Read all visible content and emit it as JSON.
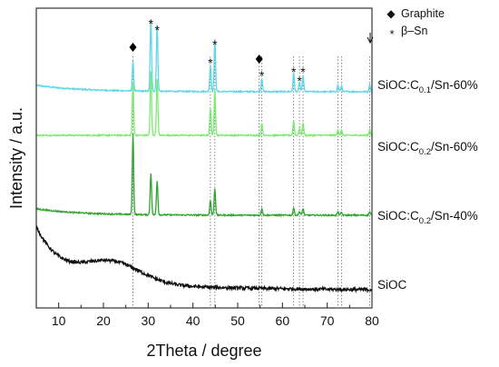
{
  "chart_data": {
    "type": "line",
    "xlabel": "2Theta / degree",
    "ylabel": "Intensity / a.u.",
    "xlim": [
      5,
      80
    ],
    "x_ticks": [
      10,
      20,
      30,
      40,
      50,
      60,
      70,
      80
    ],
    "y_ticks_labeled": false,
    "grid": false,
    "legend": {
      "placement": "top-right",
      "entries": [
        {
          "symbol": "◆",
          "label": "Graphite"
        },
        {
          "symbol": "*",
          "label": "β–Sn"
        }
      ]
    },
    "reference_lines_2theta": [
      26.6,
      43.9,
      44.9,
      54.8,
      55.4,
      62.5,
      63.8,
      64.6,
      72.4,
      73.2,
      79.5
    ],
    "graphite_markers_2theta": [
      26.6,
      54.8
    ],
    "sn_markers_2theta": [
      30.6,
      32.0,
      43.9,
      44.9,
      55.4,
      62.5,
      63.8,
      64.6
    ],
    "series": [
      {
        "name": "SiOC:C0.1/Sn-60%",
        "label_parts": [
          "SiOC:C",
          "0.1",
          "/Sn-60%"
        ],
        "color": "#5ED7E8",
        "baseline": "sloped",
        "peaks": [
          [
            26.6,
            0.6
          ],
          [
            30.6,
            1.45
          ],
          [
            32.0,
            1.35
          ],
          [
            43.9,
            0.55
          ],
          [
            44.9,
            1.05
          ],
          [
            55.4,
            0.28
          ],
          [
            62.5,
            0.38
          ],
          [
            63.8,
            0.2
          ],
          [
            64.6,
            0.32
          ],
          [
            72.4,
            0.14
          ],
          [
            73.2,
            0.12
          ],
          [
            79.5,
            0.15
          ]
        ]
      },
      {
        "name": "SiOC:C0.2/Sn-60%",
        "label_parts": [
          "SiOC:C",
          "0.2",
          "/Sn-60%"
        ],
        "color": "#7DEB72",
        "baseline": "flat",
        "peaks": [
          [
            26.6,
            1.1
          ],
          [
            30.6,
            1.3
          ],
          [
            32.0,
            1.15
          ],
          [
            43.9,
            0.55
          ],
          [
            44.9,
            0.95
          ],
          [
            55.4,
            0.25
          ],
          [
            62.5,
            0.3
          ],
          [
            63.8,
            0.15
          ],
          [
            64.6,
            0.25
          ],
          [
            72.4,
            0.12
          ],
          [
            73.2,
            0.1
          ],
          [
            79.5,
            0.12
          ]
        ]
      },
      {
        "name": "SiOC:C0.2/Sn-40%",
        "label_parts": [
          "SiOC:C",
          "0.2",
          "/Sn-40%"
        ],
        "color": "#2EA62E",
        "baseline": "sloped",
        "peaks": [
          [
            26.6,
            1.65
          ],
          [
            30.6,
            0.85
          ],
          [
            32.0,
            0.7
          ],
          [
            43.9,
            0.3
          ],
          [
            44.9,
            0.55
          ],
          [
            55.4,
            0.14
          ],
          [
            62.5,
            0.15
          ],
          [
            63.8,
            0.08
          ],
          [
            64.6,
            0.14
          ],
          [
            72.4,
            0.07
          ],
          [
            73.2,
            0.06
          ],
          [
            79.5,
            0.07
          ]
        ]
      },
      {
        "name": "SiOC",
        "label_parts": [
          "SiOC",
          "",
          ""
        ],
        "color": "#111111",
        "baseline": "amorphous",
        "peaks": []
      }
    ]
  }
}
